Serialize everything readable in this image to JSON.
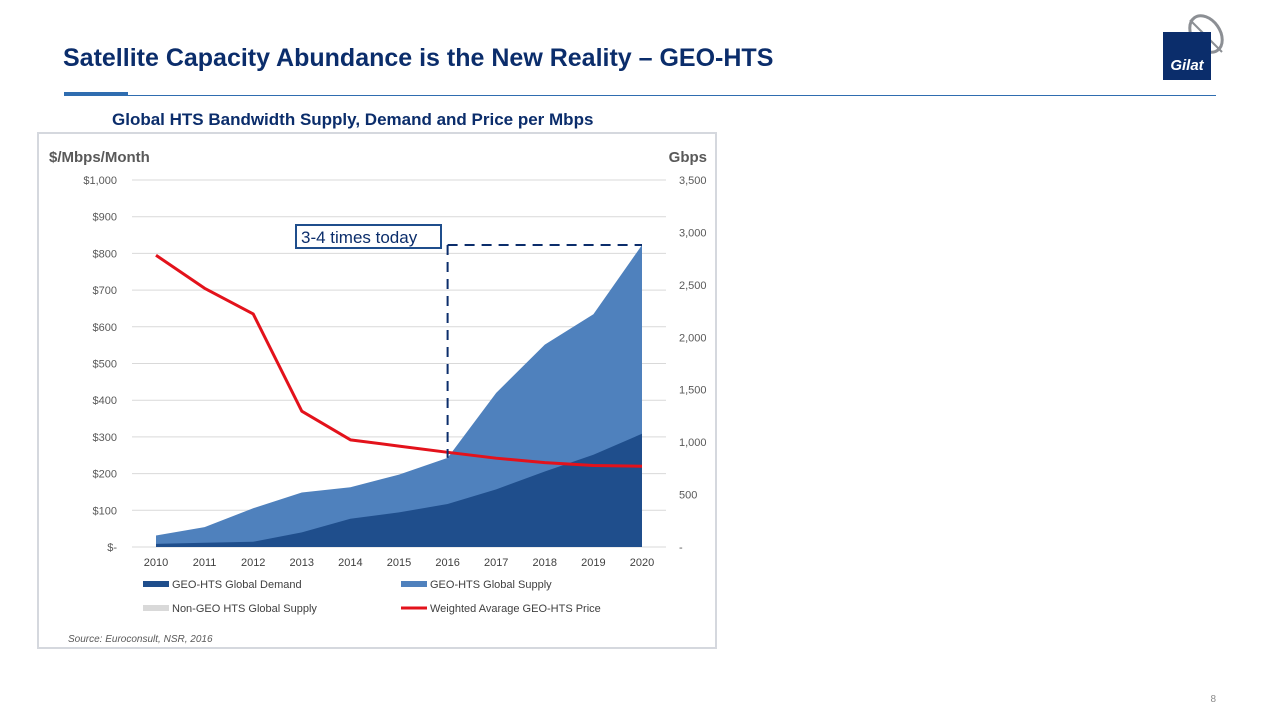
{
  "slide": {
    "title": "Satellite Capacity Abundance is the New Reality – GEO-HTS",
    "logo_text": "Gilat",
    "page_number": "8"
  },
  "chart_data": {
    "type": "area",
    "title": "Global HTS Bandwidth Supply, Demand and Price per Mbps",
    "x": [
      "2010",
      "2011",
      "2012",
      "2013",
      "2014",
      "2015",
      "2016",
      "2017",
      "2018",
      "2019",
      "2020"
    ],
    "left_axis": {
      "title": "$/Mbps/Month",
      "range": [
        0,
        1000
      ],
      "ticks": [
        0,
        100,
        200,
        300,
        400,
        500,
        600,
        700,
        800,
        900,
        1000
      ],
      "tick_labels": [
        "$-",
        "$100",
        "$200",
        "$300",
        "$400",
        "$500",
        "$600",
        "$700",
        "$800",
        "$900",
        "$1,000"
      ]
    },
    "right_axis": {
      "title": "Gbps",
      "range": [
        0,
        3500
      ],
      "ticks": [
        0,
        500,
        1000,
        1500,
        2000,
        2500,
        3000,
        3500
      ],
      "tick_labels": [
        "-",
        "500",
        "1,000",
        "1,500",
        "2,000",
        "2,500",
        "3,000",
        "3,500"
      ]
    },
    "grid": true,
    "legend_position": "bottom",
    "series": [
      {
        "name": "GEO-HTS Global Demand",
        "kind": "area",
        "axis": "right",
        "color": "#1f4e8c",
        "values": [
          30,
          40,
          50,
          140,
          270,
          330,
          410,
          550,
          720,
          880,
          1080
        ]
      },
      {
        "name": "GEO-HTS Global Supply",
        "kind": "area",
        "axis": "right",
        "color": "#4f81bd",
        "values": [
          110,
          190,
          370,
          520,
          570,
          690,
          850,
          1470,
          1930,
          2220,
          2880
        ]
      },
      {
        "name": "Non-GEO HTS Global Supply",
        "kind": "area",
        "axis": "right",
        "color": "#d9d9d9",
        "values": [
          0,
          0,
          0,
          0,
          0,
          0,
          0,
          0,
          0,
          0,
          0
        ]
      },
      {
        "name": "Weighted Avarage GEO-HTS Price",
        "kind": "line",
        "axis": "left",
        "color": "#e3121b",
        "values": [
          795,
          705,
          635,
          370,
          292,
          275,
          258,
          242,
          230,
          222,
          220
        ]
      }
    ],
    "annotation": {
      "text": "3-4 times today",
      "from_year": "2016",
      "to_year": "2020",
      "level_gbps": 2880
    },
    "source": "Source: Euroconsult, NSR, 2016"
  }
}
